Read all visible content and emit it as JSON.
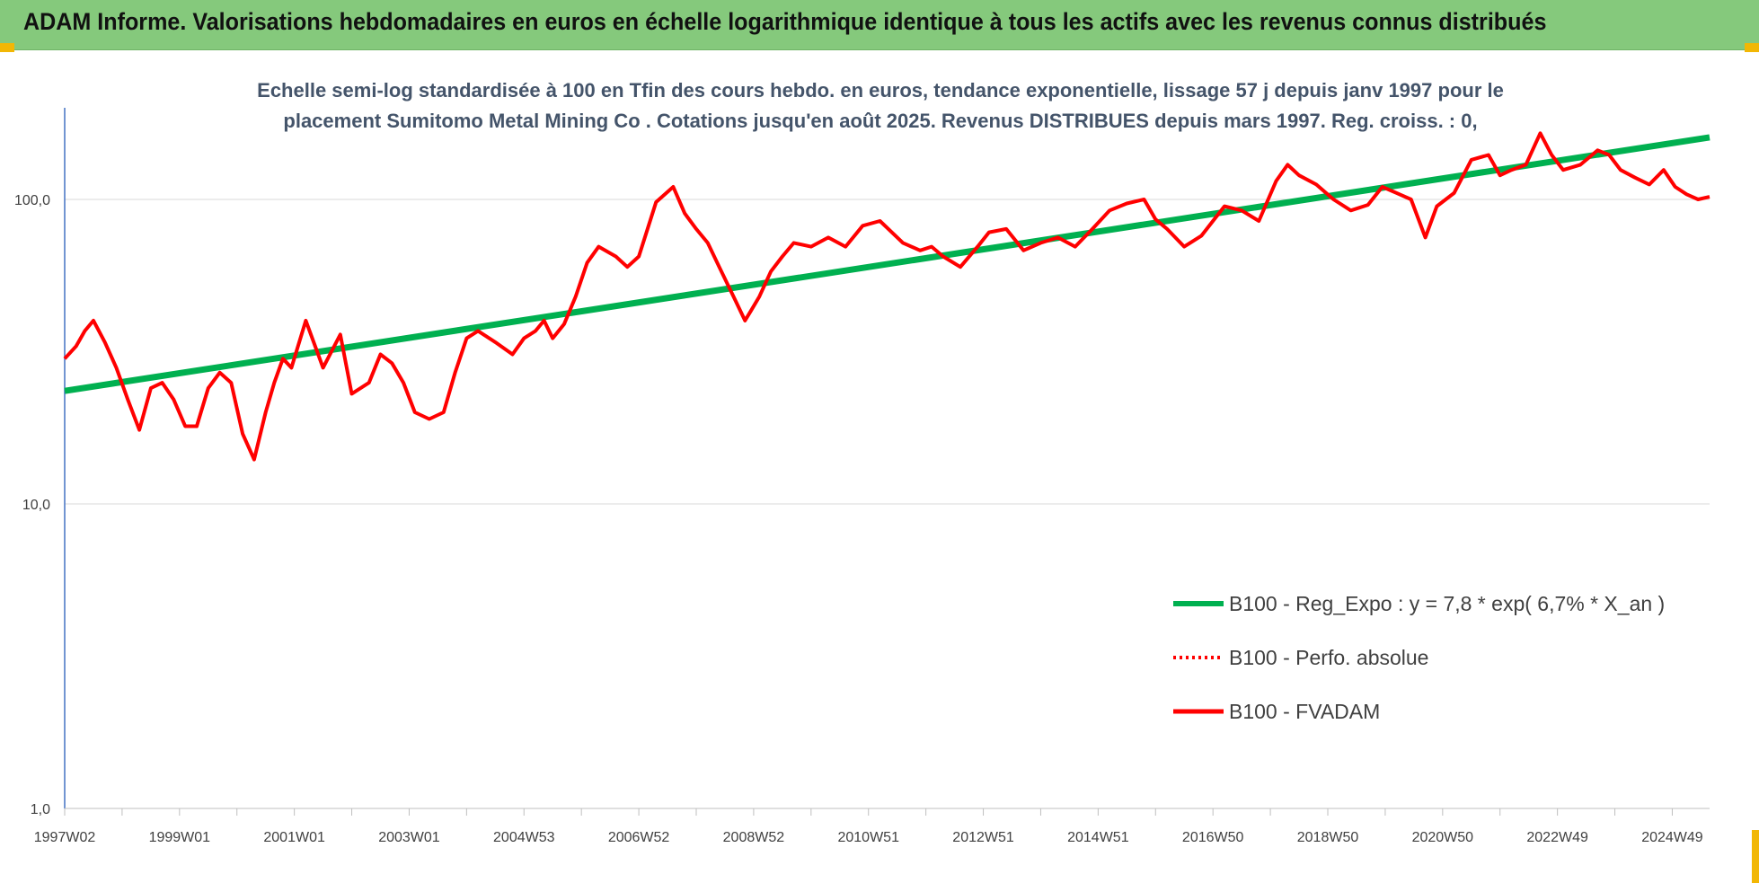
{
  "banner": {
    "title": "ADAM Informe. Valorisations hebdomadaires en euros en échelle logarithmique identique à tous les actifs avec les revenus connus distribués"
  },
  "colors": {
    "banner_bg": "#85c97c",
    "trend": "#00b050",
    "perfo": "#ff0000",
    "fvadam": "#ff0000",
    "subtitle_text": "#44546a",
    "corner_marks": "#f2b705"
  },
  "chart_data": {
    "type": "line",
    "title": "Echelle semi-log standardisée à 100 en Tfin des cours hebdo. en euros, tendance exponentielle, lissage 57 j depuis janv 1997 pour le",
    "subtitle": "placement Sumitomo Metal Mining Co . Cotations jusqu'en août 2025. Revenus DISTRIBUES depuis mars 1997. Reg. croiss. : 0,",
    "xlabel": "",
    "ylabel": "",
    "y_scale": "log",
    "ylim": [
      1,
      200
    ],
    "xlim": [
      1997.0,
      2025.65
    ],
    "grid": true,
    "legend_position": "right",
    "y_ticks": [
      {
        "value": 1,
        "label": "1,0"
      },
      {
        "value": 10,
        "label": "10,0"
      },
      {
        "value": 100,
        "label": "100,0"
      }
    ],
    "x_ticks": [
      {
        "value": 1997.0,
        "label": "1997W02"
      },
      {
        "value": 1999.0,
        "label": "1999W01"
      },
      {
        "value": 2001.0,
        "label": "2001W01"
      },
      {
        "value": 2003.0,
        "label": "2003W01"
      },
      {
        "value": 2005.0,
        "label": "2004W53"
      },
      {
        "value": 2007.0,
        "label": "2006W52"
      },
      {
        "value": 2009.0,
        "label": "2008W52"
      },
      {
        "value": 2011.0,
        "label": "2010W51"
      },
      {
        "value": 2013.0,
        "label": "2012W51"
      },
      {
        "value": 2015.0,
        "label": "2014W51"
      },
      {
        "value": 2017.0,
        "label": "2016W50"
      },
      {
        "value": 2019.0,
        "label": "2018W50"
      },
      {
        "value": 2021.0,
        "label": "2020W50"
      },
      {
        "value": 2023.0,
        "label": "2022W49"
      },
      {
        "value": 2025.0,
        "label": "2024W49"
      }
    ],
    "series": [
      {
        "name": "B100 - Reg_Expo : y = 7,8 * exp( 6,7% *  X_an )",
        "style": "solid-thick",
        "color": "#00b050",
        "x": [
          1997.0,
          2025.65
        ],
        "y": [
          23.5,
          160
        ]
      },
      {
        "name": "B100 - Perfo. absolue",
        "style": "dotted",
        "color": "#ff0000",
        "x": [],
        "y": []
      },
      {
        "name": "B100 - FVADAM",
        "style": "solid",
        "color": "#ff0000",
        "x": [
          1997.0,
          1997.2,
          1997.35,
          1997.5,
          1997.7,
          1997.9,
          1998.1,
          1998.3,
          1998.5,
          1998.7,
          1998.9,
          1999.1,
          1999.3,
          1999.5,
          1999.7,
          1999.9,
          2000.1,
          2000.3,
          2000.5,
          2000.65,
          2000.8,
          2000.95,
          2001.2,
          2001.5,
          2001.8,
          2002.0,
          2002.3,
          2002.5,
          2002.7,
          2002.9,
          2003.1,
          2003.35,
          2003.6,
          2003.8,
          2004.0,
          2004.2,
          2004.5,
          2004.8,
          2005.0,
          2005.2,
          2005.35,
          2005.5,
          2005.7,
          2005.9,
          2006.1,
          2006.3,
          2006.6,
          2006.8,
          2007.0,
          2007.3,
          2007.6,
          2007.8,
          2008.0,
          2008.2,
          2008.4,
          2008.65,
          2008.85,
          2008.95,
          2009.1,
          2009.3,
          2009.5,
          2009.7,
          2010.0,
          2010.3,
          2010.6,
          2010.9,
          2011.2,
          2011.6,
          2011.9,
          2012.1,
          2012.3,
          2012.6,
          2012.9,
          2013.1,
          2013.4,
          2013.7,
          2014.0,
          2014.3,
          2014.6,
          2014.9,
          2015.2,
          2015.5,
          2015.8,
          2016.0,
          2016.2,
          2016.5,
          2016.8,
          2017.0,
          2017.2,
          2017.5,
          2017.8,
          2018.1,
          2018.3,
          2018.5,
          2018.8,
          2019.1,
          2019.4,
          2019.7,
          2019.95,
          2020.2,
          2020.45,
          2020.7,
          2020.9,
          2021.2,
          2021.5,
          2021.8,
          2022.0,
          2022.2,
          2022.45,
          2022.7,
          2022.9,
          2023.1,
          2023.4,
          2023.7,
          2023.9,
          2024.1,
          2024.35,
          2024.6,
          2024.85,
          2025.05,
          2025.25,
          2025.45,
          2025.65
        ],
        "y": [
          30,
          33,
          37,
          40,
          34,
          28,
          22,
          17.5,
          24,
          25,
          22,
          18,
          18,
          24,
          27,
          25,
          17,
          14,
          20,
          25,
          30,
          28,
          40,
          28,
          36,
          23,
          25,
          31,
          29,
          25,
          20,
          19,
          20,
          27,
          35,
          37,
          34,
          31,
          35,
          37,
          40,
          35,
          39,
          48,
          62,
          70,
          65,
          60,
          65,
          98,
          110,
          90,
          80,
          72,
          60,
          48,
          40,
          43,
          48,
          58,
          65,
          72,
          70,
          75,
          70,
          82,
          85,
          72,
          68,
          70,
          65,
          60,
          70,
          78,
          80,
          68,
          72,
          75,
          70,
          80,
          92,
          97,
          100,
          86,
          80,
          70,
          76,
          85,
          95,
          92,
          85,
          115,
          130,
          120,
          112,
          100,
          92,
          96,
          110,
          105,
          100,
          75,
          95,
          105,
          135,
          140,
          120,
          125,
          130,
          165,
          140,
          125,
          130,
          145,
          140,
          125,
          118,
          112,
          125,
          110,
          104,
          100,
          102
        ]
      }
    ]
  }
}
